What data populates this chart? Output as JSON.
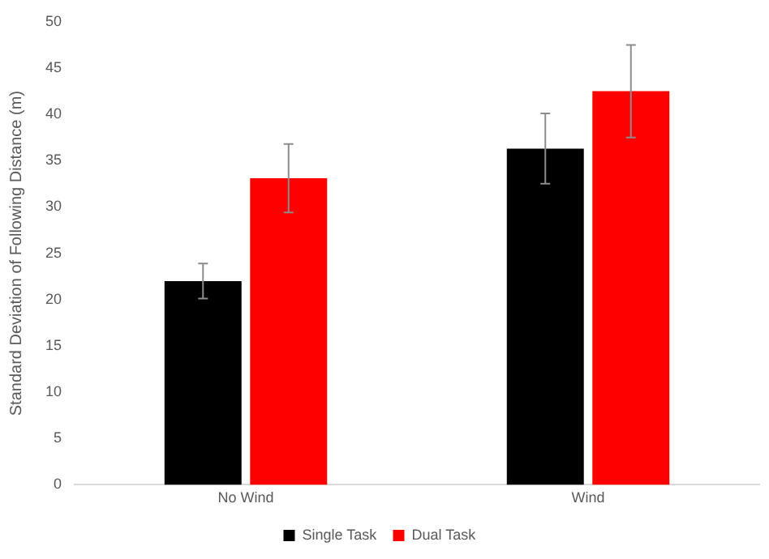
{
  "chart_data": {
    "type": "bar",
    "ylabel": "Standard Deviation of Following Distance (m)",
    "categories": [
      "No Wind",
      "Wind"
    ],
    "series": [
      {
        "name": "Single Task",
        "color": "#000000",
        "values": [
          22.0,
          36.3
        ],
        "errors": [
          1.9,
          3.8
        ]
      },
      {
        "name": "Dual Task",
        "color": "#ff0000",
        "values": [
          33.1,
          42.5
        ],
        "errors": [
          3.7,
          5.0
        ]
      }
    ],
    "ylim": [
      0,
      50
    ],
    "yticks": [
      0,
      5,
      10,
      15,
      20,
      25,
      30,
      35,
      40,
      45,
      50
    ],
    "grid": false,
    "legend": "bottom"
  }
}
